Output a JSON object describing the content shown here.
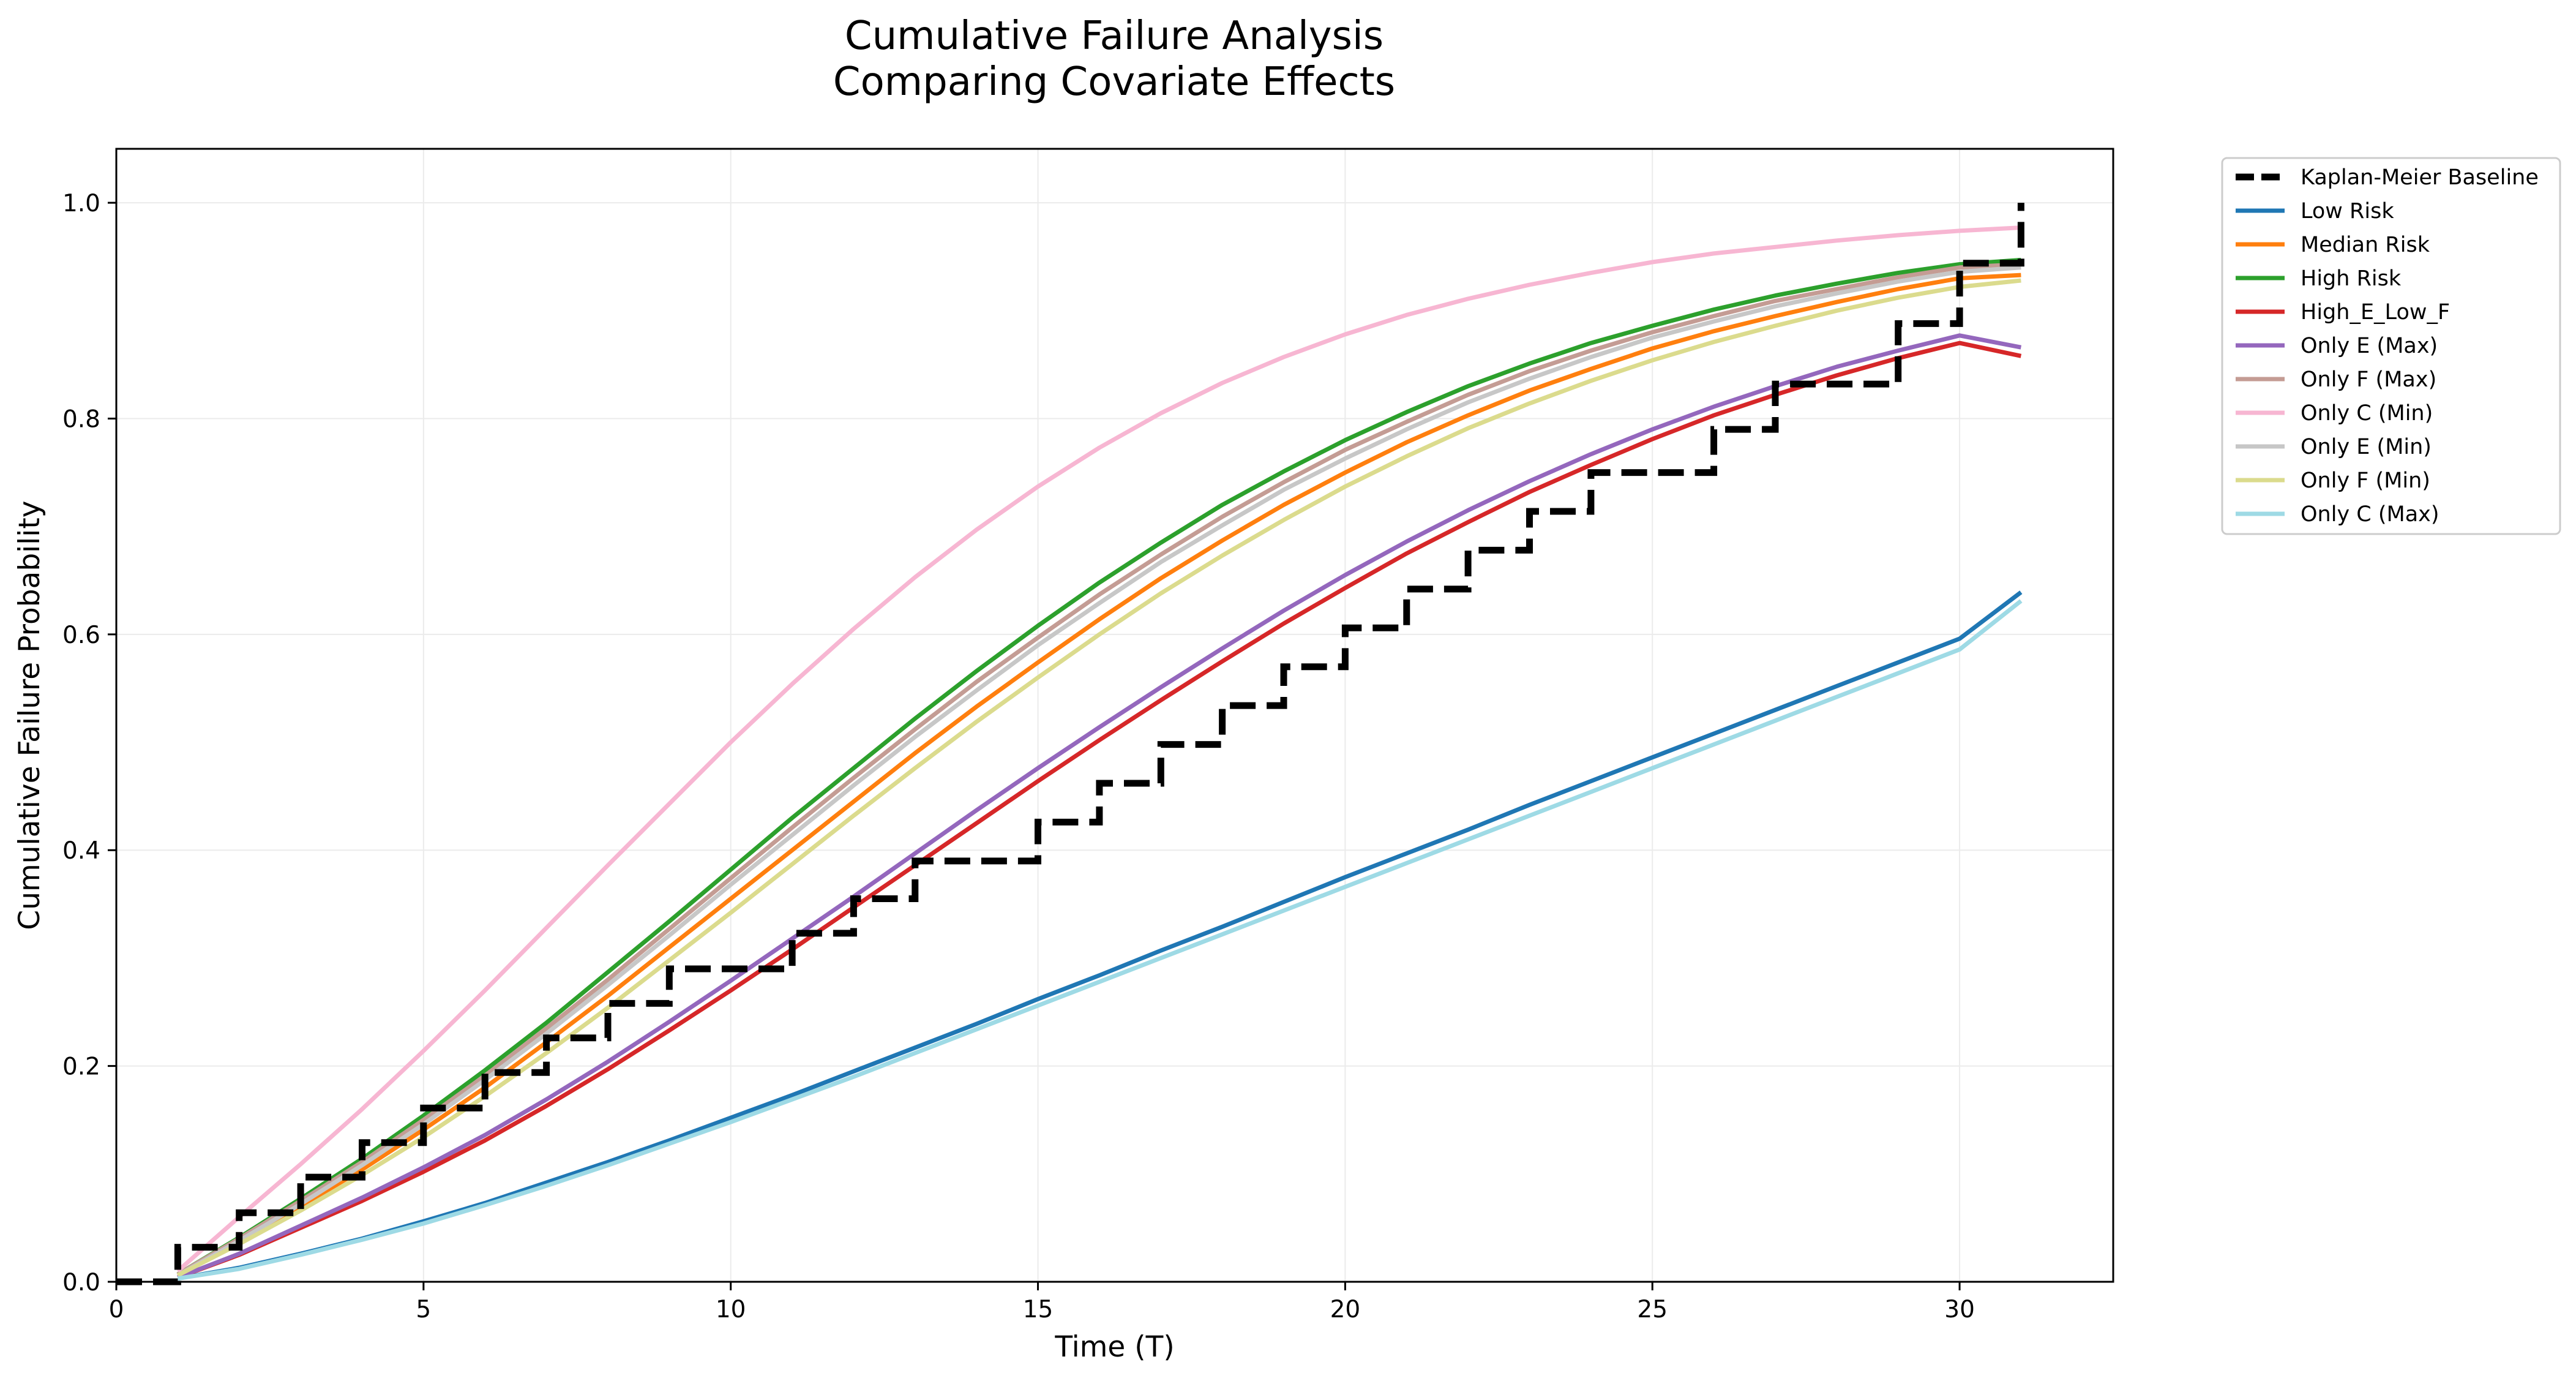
{
  "chart_data": {
    "type": "line",
    "title": "Cumulative Failure Analysis",
    "subtitle": "Comparing Covariate Effects",
    "xlabel": "Time (T)",
    "ylabel": "Cumulative Failure Probability",
    "xlim": [
      0,
      32.5
    ],
    "ylim": [
      0,
      1.05
    ],
    "xticks": [
      0,
      5,
      10,
      15,
      20,
      25,
      30
    ],
    "yticks": [
      0.0,
      0.2,
      0.4,
      0.6,
      0.8,
      1.0
    ],
    "xtick_labels": [
      "0",
      "5",
      "10",
      "15",
      "20",
      "25",
      "30"
    ],
    "ytick_labels": [
      "0.0",
      "0.2",
      "0.4",
      "0.6",
      "0.8",
      "1.0"
    ],
    "grid": true,
    "legend_position": "outside-top-right",
    "baseline": {
      "name": "Kaplan-Meier Baseline",
      "color": "#000000",
      "style": "dashed-step",
      "x": [
        0,
        1,
        2,
        3,
        4,
        5,
        6,
        7,
        8,
        9,
        10,
        11,
        12,
        13,
        14,
        15,
        16,
        17,
        18,
        19,
        20,
        21,
        22,
        23,
        24,
        25,
        26,
        27,
        28,
        29,
        30,
        31
      ],
      "y": [
        0.0,
        0.032,
        0.064,
        0.097,
        0.129,
        0.161,
        0.194,
        0.226,
        0.258,
        0.29,
        0.29,
        0.323,
        0.355,
        0.39,
        0.39,
        0.426,
        0.462,
        0.498,
        0.534,
        0.57,
        0.606,
        0.642,
        0.678,
        0.714,
        0.75,
        0.75,
        0.79,
        0.832,
        0.832,
        0.888,
        0.944,
        1.0
      ]
    },
    "x": [
      1,
      2,
      3,
      4,
      5,
      6,
      7,
      8,
      9,
      10,
      11,
      12,
      13,
      14,
      15,
      16,
      17,
      18,
      19,
      20,
      21,
      22,
      23,
      24,
      25,
      26,
      27,
      28,
      29,
      30,
      31
    ],
    "series": [
      {
        "name": "Low Risk",
        "color": "#1f77b4",
        "values": [
          0.003,
          0.013,
          0.026,
          0.04,
          0.056,
          0.073,
          0.092,
          0.111,
          0.131,
          0.152,
          0.173,
          0.195,
          0.217,
          0.239,
          0.262,
          0.284,
          0.307,
          0.329,
          0.352,
          0.375,
          0.397,
          0.419,
          0.442,
          0.464,
          0.486,
          0.508,
          0.53,
          0.552,
          0.574,
          0.596,
          0.639
        ]
      },
      {
        "name": "Median Risk",
        "color": "#ff7f0e",
        "values": [
          0.006,
          0.037,
          0.07,
          0.104,
          0.141,
          0.18,
          0.222,
          0.265,
          0.31,
          0.355,
          0.4,
          0.445,
          0.49,
          0.533,
          0.574,
          0.614,
          0.652,
          0.687,
          0.72,
          0.75,
          0.778,
          0.803,
          0.826,
          0.846,
          0.865,
          0.881,
          0.895,
          0.908,
          0.92,
          0.93,
          0.933
        ]
      },
      {
        "name": "High Risk",
        "color": "#2ca02c",
        "values": [
          0.007,
          0.041,
          0.077,
          0.114,
          0.154,
          0.196,
          0.24,
          0.287,
          0.334,
          0.382,
          0.43,
          0.476,
          0.522,
          0.566,
          0.608,
          0.648,
          0.685,
          0.72,
          0.751,
          0.78,
          0.806,
          0.83,
          0.851,
          0.87,
          0.886,
          0.901,
          0.914,
          0.925,
          0.935,
          0.943,
          0.947
        ]
      },
      {
        "name": "High_E_Low_F",
        "color": "#d62728",
        "values": [
          0.004,
          0.025,
          0.05,
          0.075,
          0.102,
          0.131,
          0.163,
          0.197,
          0.233,
          0.27,
          0.308,
          0.347,
          0.386,
          0.425,
          0.464,
          0.502,
          0.539,
          0.575,
          0.61,
          0.643,
          0.675,
          0.704,
          0.732,
          0.757,
          0.781,
          0.803,
          0.822,
          0.84,
          0.856,
          0.87,
          0.858
        ]
      },
      {
        "name": "Only E (Max)",
        "color": "#9467bd",
        "values": [
          0.004,
          0.026,
          0.052,
          0.078,
          0.106,
          0.136,
          0.169,
          0.204,
          0.241,
          0.279,
          0.318,
          0.357,
          0.397,
          0.437,
          0.476,
          0.514,
          0.551,
          0.587,
          0.622,
          0.655,
          0.686,
          0.715,
          0.742,
          0.767,
          0.79,
          0.811,
          0.83,
          0.848,
          0.863,
          0.877,
          0.866
        ]
      },
      {
        "name": "Only F (Max)",
        "color": "#c49c94",
        "values": [
          0.007,
          0.04,
          0.075,
          0.111,
          0.15,
          0.191,
          0.235,
          0.28,
          0.327,
          0.374,
          0.421,
          0.467,
          0.512,
          0.556,
          0.597,
          0.637,
          0.674,
          0.709,
          0.741,
          0.771,
          0.797,
          0.822,
          0.844,
          0.863,
          0.88,
          0.895,
          0.909,
          0.92,
          0.931,
          0.94,
          0.943
        ]
      },
      {
        "name": "Only C (Min)",
        "color": "#f7b6d2",
        "values": [
          0.01,
          0.06,
          0.109,
          0.16,
          0.214,
          0.27,
          0.328,
          0.386,
          0.443,
          0.5,
          0.554,
          0.605,
          0.653,
          0.697,
          0.737,
          0.773,
          0.805,
          0.833,
          0.857,
          0.878,
          0.896,
          0.911,
          0.924,
          0.935,
          0.945,
          0.953,
          0.959,
          0.965,
          0.97,
          0.974,
          0.977
        ]
      },
      {
        "name": "Only E (Min)",
        "color": "#c7c7c7",
        "values": [
          0.006,
          0.038,
          0.072,
          0.108,
          0.146,
          0.187,
          0.23,
          0.275,
          0.321,
          0.368,
          0.414,
          0.46,
          0.505,
          0.548,
          0.59,
          0.629,
          0.667,
          0.701,
          0.734,
          0.763,
          0.79,
          0.815,
          0.837,
          0.857,
          0.875,
          0.89,
          0.904,
          0.916,
          0.927,
          0.936,
          0.94
        ]
      },
      {
        "name": "Only F (Min)",
        "color": "#dbdb8d",
        "values": [
          0.006,
          0.035,
          0.066,
          0.099,
          0.134,
          0.172,
          0.212,
          0.254,
          0.298,
          0.342,
          0.387,
          0.432,
          0.476,
          0.519,
          0.56,
          0.6,
          0.638,
          0.673,
          0.706,
          0.737,
          0.765,
          0.791,
          0.814,
          0.835,
          0.854,
          0.871,
          0.886,
          0.9,
          0.912,
          0.922,
          0.928
        ]
      },
      {
        "name": "Only C (Max)",
        "color": "#9edae5",
        "values": [
          0.003,
          0.012,
          0.025,
          0.039,
          0.054,
          0.071,
          0.089,
          0.108,
          0.128,
          0.148,
          0.169,
          0.19,
          0.212,
          0.234,
          0.256,
          0.278,
          0.3,
          0.322,
          0.344,
          0.366,
          0.388,
          0.41,
          0.432,
          0.454,
          0.476,
          0.498,
          0.52,
          0.542,
          0.564,
          0.586,
          0.631
        ]
      }
    ]
  }
}
